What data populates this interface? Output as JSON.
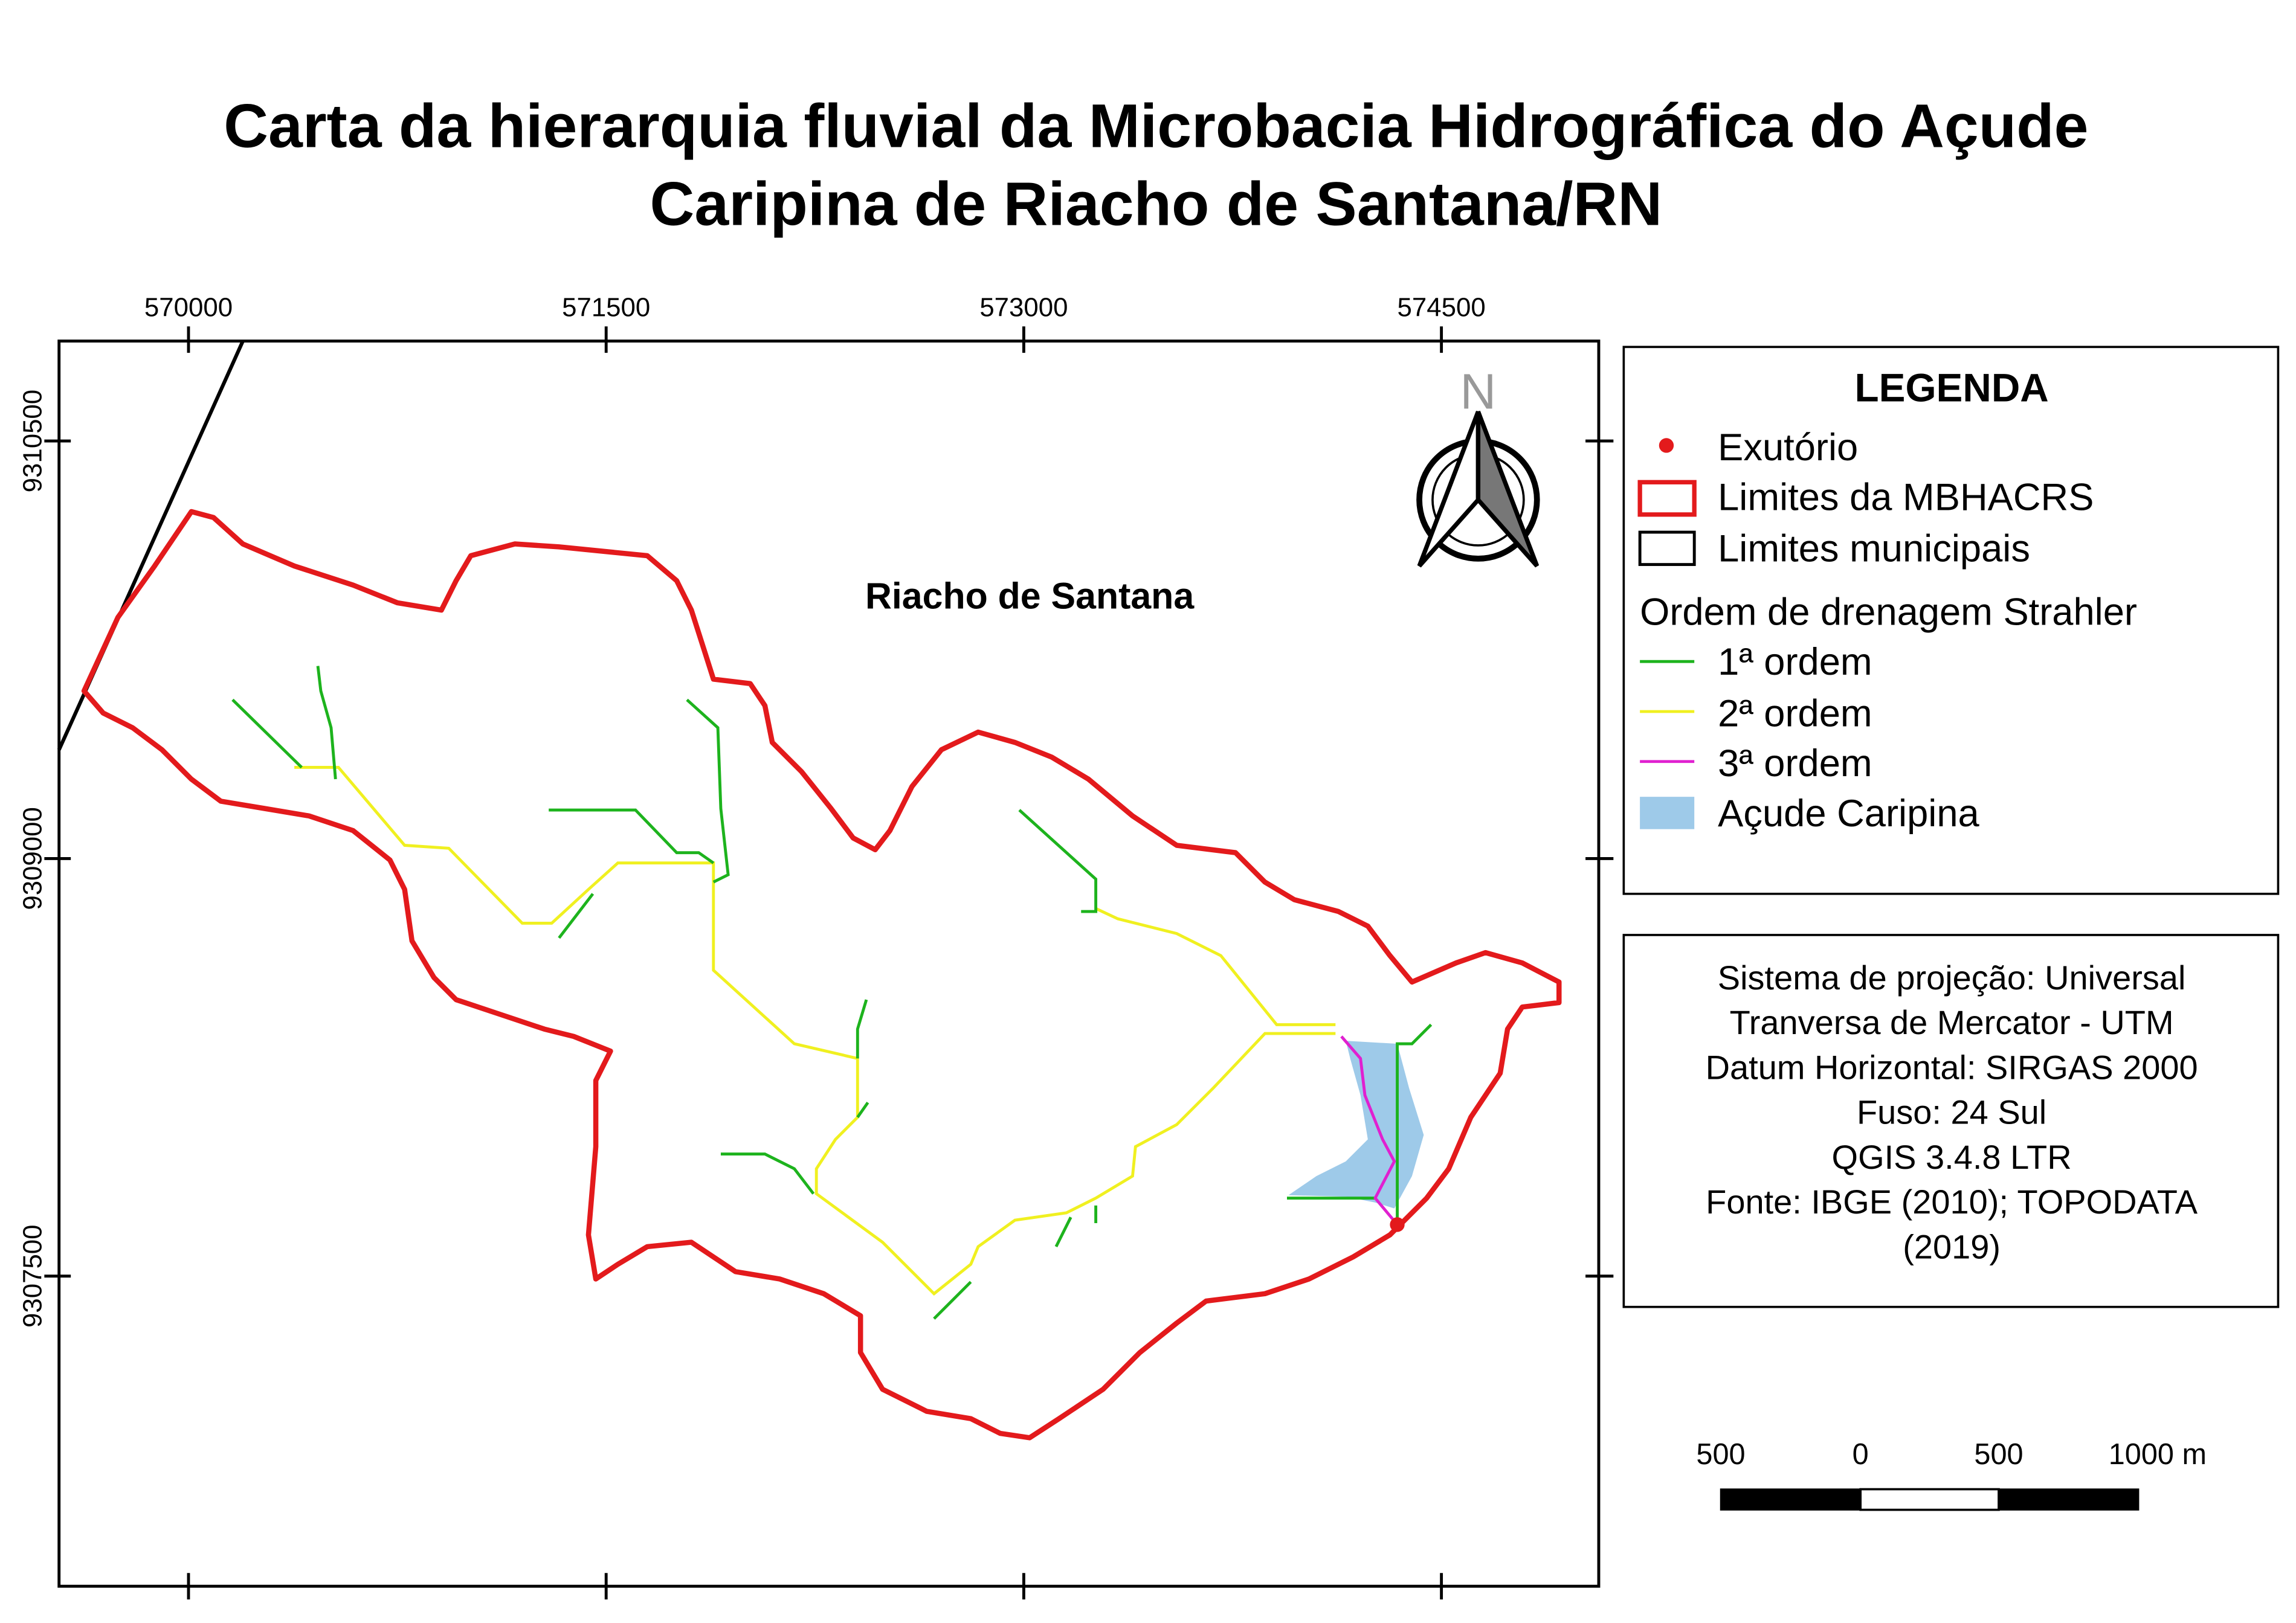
{
  "header": {
    "title": [
      "Carta da hierarquia fluvial da Microbacia Hidrográfica do Açude",
      "Caripina de Riacho de Santana/RN"
    ]
  },
  "map": {
    "xlim": [
      569535,
      575065
    ],
    "ylim": [
      9306386,
      9310859
    ],
    "xticks": [
      570000,
      571500,
      573000,
      574500
    ],
    "yticks": [
      9307500,
      9309000,
      9310500
    ],
    "place_label": "Riacho de Santana",
    "north": "N"
  },
  "legend": {
    "title": "LEGENDA",
    "entries": [
      "Exutório",
      "Limites da MBHACRS",
      "Limites municipais",
      "Ordem de drenagem Strahler",
      "1ª ordem",
      "2ª ordem",
      "3ª ordem",
      "Açude Caripina"
    ]
  },
  "info": {
    "lines": [
      "Sistema de projeção: Universal",
      "Tranversa de Mercator - UTM",
      "Datum Horizontal: SIRGAS 2000",
      "Fuso: 24 Sul",
      "QGIS 3.4.8 LTR",
      "Fonte: IBGE (2010); TOPODATA",
      "(2019)"
    ]
  },
  "scalebar": {
    "labels": [
      "500",
      "0",
      "500",
      "1000 m"
    ]
  }
}
